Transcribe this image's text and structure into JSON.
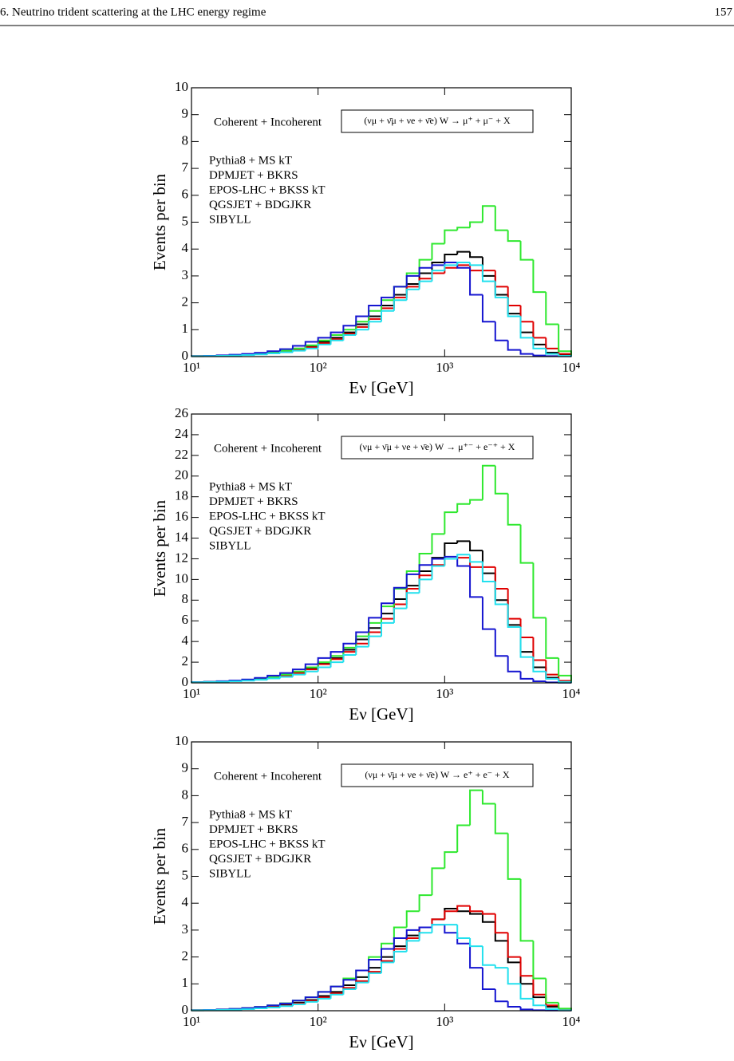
{
  "header": {
    "title": "6. Neutrino trident scattering at the LHC energy regime",
    "page": 157
  },
  "chart_data": [
    {
      "type": "histogram",
      "xlabel": "Eν [GeV]",
      "ylabel": "Events per bin",
      "annotations": [
        "Coherent + Incoherent",
        "(νμ + ν̄μ + νe + ν̄e) W → μ⁺ + μ⁻ + X"
      ],
      "log": true,
      "legend": "upper left",
      "xlim": [
        10,
        10000
      ],
      "xticks": [
        {
          "value": 10,
          "label": "10¹"
        },
        {
          "value": 100,
          "label": "10²"
        },
        {
          "value": 1000,
          "label": "10³"
        },
        {
          "value": 10000,
          "label": "10⁴"
        }
      ],
      "ylim": [
        0,
        10
      ],
      "yticks": [
        0,
        1,
        2,
        3,
        4,
        5,
        6,
        7,
        8,
        9,
        10
      ],
      "bins": [
        10,
        12.59,
        15.85,
        19.95,
        25.12,
        31.62,
        39.81,
        50.12,
        63.1,
        79.43,
        100,
        125.9,
        158.5,
        199.5,
        251.2,
        316.2,
        398.1,
        501.2,
        631,
        794.3,
        1000,
        1259,
        1585,
        1995,
        2512,
        3162,
        3981,
        5012,
        6310,
        7943,
        10000
      ],
      "series": [
        {
          "name": "Pythia8 + MS kT",
          "color": "#000000",
          "values": [
            0.02,
            0.03,
            0.04,
            0.05,
            0.07,
            0.1,
            0.15,
            0.2,
            0.3,
            0.4,
            0.55,
            0.7,
            0.9,
            1.2,
            1.5,
            1.9,
            2.3,
            2.7,
            3.1,
            3.5,
            3.8,
            3.9,
            3.7,
            3.0,
            2.3,
            1.6,
            0.9,
            0.45,
            0.15,
            0.05
          ]
        },
        {
          "name": "DPMJET + BKRS",
          "color": "#e00000",
          "values": [
            0.02,
            0.03,
            0.04,
            0.05,
            0.07,
            0.09,
            0.13,
            0.18,
            0.25,
            0.35,
            0.5,
            0.65,
            0.85,
            1.1,
            1.4,
            1.8,
            2.2,
            2.6,
            2.9,
            3.1,
            3.3,
            3.4,
            3.2,
            3.2,
            2.6,
            1.9,
            1.3,
            0.7,
            0.3,
            0.1
          ]
        },
        {
          "name": "EPOS-LHC + BKSS kT",
          "color": "#2ee82e",
          "values": [
            0.02,
            0.03,
            0.04,
            0.05,
            0.07,
            0.1,
            0.15,
            0.22,
            0.3,
            0.42,
            0.6,
            0.8,
            1.0,
            1.3,
            1.7,
            2.1,
            2.6,
            3.1,
            3.6,
            4.2,
            4.7,
            4.8,
            5.0,
            5.6,
            4.7,
            4.3,
            3.6,
            2.4,
            1.2,
            0.2
          ]
        },
        {
          "name": "QGSJET + BDGJKR",
          "color": "#1515d0",
          "values": [
            0.02,
            0.03,
            0.05,
            0.07,
            0.1,
            0.14,
            0.2,
            0.28,
            0.4,
            0.55,
            0.7,
            0.9,
            1.15,
            1.5,
            1.9,
            2.2,
            2.6,
            3.0,
            3.3,
            3.4,
            3.5,
            3.3,
            2.3,
            1.3,
            0.6,
            0.25,
            0.1,
            0.04,
            0.02,
            0.01
          ]
        },
        {
          "name": "SIBYLL",
          "color": "#22e0ee",
          "values": [
            0.01,
            0.02,
            0.03,
            0.04,
            0.06,
            0.08,
            0.12,
            0.16,
            0.22,
            0.3,
            0.45,
            0.6,
            0.8,
            1.0,
            1.3,
            1.7,
            2.1,
            2.5,
            2.8,
            3.2,
            3.4,
            3.5,
            3.4,
            2.8,
            2.2,
            1.5,
            0.7,
            0.3,
            0.1,
            0.03
          ]
        }
      ]
    },
    {
      "type": "histogram",
      "xlabel": "Eν [GeV]",
      "ylabel": "Events per bin",
      "annotations": [
        "Coherent + Incoherent",
        "(νμ + ν̄μ + νe + ν̄e) W → μ⁺⁻ + e⁻⁺ + X"
      ],
      "log": true,
      "legend": "upper left",
      "xlim": [
        10,
        10000
      ],
      "xticks": [
        {
          "value": 10,
          "label": "10¹"
        },
        {
          "value": 100,
          "label": "10²"
        },
        {
          "value": 1000,
          "label": "10³"
        },
        {
          "value": 10000,
          "label": "10⁴"
        }
      ],
      "ylim": [
        0,
        26
      ],
      "yticks": [
        0,
        2,
        4,
        6,
        8,
        10,
        12,
        14,
        16,
        18,
        20,
        22,
        24,
        26
      ],
      "bins": [
        10,
        12.59,
        15.85,
        19.95,
        25.12,
        31.62,
        39.81,
        50.12,
        63.1,
        79.43,
        100,
        125.9,
        158.5,
        199.5,
        251.2,
        316.2,
        398.1,
        501.2,
        631,
        794.3,
        1000,
        1259,
        1585,
        1995,
        2512,
        3162,
        3981,
        5012,
        6310,
        7943,
        10000
      ],
      "series": [
        {
          "name": "Pythia8 + MS kT",
          "color": "#000000",
          "values": [
            0.07,
            0.1,
            0.14,
            0.2,
            0.28,
            0.4,
            0.55,
            0.75,
            1.0,
            1.4,
            1.9,
            2.4,
            3.2,
            4.2,
            5.3,
            6.7,
            8.1,
            9.4,
            10.8,
            12.1,
            13.5,
            13.7,
            12.8,
            10.6,
            8.0,
            5.6,
            3.0,
            1.5,
            0.5,
            0.15
          ]
        },
        {
          "name": "DPMJET + BKRS",
          "color": "#e00000",
          "values": [
            0.06,
            0.09,
            0.13,
            0.18,
            0.25,
            0.35,
            0.5,
            0.7,
            0.95,
            1.3,
            1.8,
            2.3,
            3.0,
            3.8,
            4.9,
            6.2,
            7.6,
            9.1,
            10.4,
            11.4,
            12.0,
            12.1,
            11.2,
            11.2,
            9.1,
            6.2,
            4.4,
            2.2,
            0.8,
            0.2
          ]
        },
        {
          "name": "EPOS-LHC + BKSS kT",
          "color": "#2ee82e",
          "values": [
            0.07,
            0.1,
            0.14,
            0.2,
            0.28,
            0.4,
            0.55,
            0.8,
            1.1,
            1.5,
            2.0,
            2.6,
            3.4,
            4.5,
            5.8,
            7.4,
            9.1,
            10.8,
            12.5,
            14.4,
            16.5,
            17.3,
            17.7,
            21.0,
            18.3,
            15.3,
            11.6,
            6.3,
            2.4,
            0.7
          ]
        },
        {
          "name": "QGSJET + BDGJKR",
          "color": "#1515d0",
          "values": [
            0.07,
            0.11,
            0.16,
            0.23,
            0.33,
            0.48,
            0.7,
            0.95,
            1.3,
            1.8,
            2.4,
            3.0,
            3.8,
            4.9,
            6.3,
            7.7,
            9.2,
            10.5,
            11.4,
            12.0,
            12.2,
            11.3,
            8.3,
            5.2,
            2.6,
            1.1,
            0.4,
            0.15,
            0.05,
            0.02
          ]
        },
        {
          "name": "SIBYLL",
          "color": "#22e0ee",
          "values": [
            0.05,
            0.08,
            0.11,
            0.15,
            0.21,
            0.3,
            0.42,
            0.58,
            0.8,
            1.1,
            1.5,
            2.0,
            2.7,
            3.5,
            4.5,
            5.8,
            7.2,
            8.7,
            10.0,
            11.3,
            12.0,
            12.4,
            11.7,
            9.8,
            7.6,
            5.4,
            2.5,
            1.1,
            0.4,
            0.1
          ]
        }
      ]
    },
    {
      "type": "histogram",
      "xlabel": "Eν [GeV]",
      "ylabel": "Events per bin",
      "annotations": [
        "Coherent + Incoherent",
        "(νμ + ν̄μ + νe + ν̄e) W → e⁺ + e⁻ + X"
      ],
      "log": true,
      "legend": "upper left",
      "xlim": [
        10,
        10000
      ],
      "xticks": [
        {
          "value": 10,
          "label": "10¹"
        },
        {
          "value": 100,
          "label": "10²"
        },
        {
          "value": 1000,
          "label": "10³"
        },
        {
          "value": 10000,
          "label": "10⁴"
        }
      ],
      "ylim": [
        0,
        10
      ],
      "yticks": [
        0,
        1,
        2,
        3,
        4,
        5,
        6,
        7,
        8,
        9,
        10
      ],
      "bins": [
        10,
        12.59,
        15.85,
        19.95,
        25.12,
        31.62,
        39.81,
        50.12,
        63.1,
        79.43,
        100,
        125.9,
        158.5,
        199.5,
        251.2,
        316.2,
        398.1,
        501.2,
        631,
        794.3,
        1000,
        1259,
        1585,
        1995,
        2512,
        3162,
        3981,
        5012,
        6310,
        7943,
        10000
      ],
      "series": [
        {
          "name": "Pythia8 + MS kT",
          "color": "#000000",
          "values": [
            0.02,
            0.03,
            0.04,
            0.06,
            0.08,
            0.11,
            0.15,
            0.21,
            0.3,
            0.4,
            0.55,
            0.7,
            0.95,
            1.25,
            1.6,
            2.0,
            2.4,
            2.8,
            3.1,
            3.4,
            3.8,
            3.7,
            3.6,
            3.3,
            2.6,
            1.8,
            1.0,
            0.5,
            0.15,
            0.05
          ]
        },
        {
          "name": "DPMJET + BKRS",
          "color": "#e00000",
          "values": [
            0.02,
            0.03,
            0.04,
            0.05,
            0.07,
            0.1,
            0.14,
            0.19,
            0.27,
            0.37,
            0.5,
            0.65,
            0.85,
            1.1,
            1.45,
            1.85,
            2.3,
            2.7,
            3.1,
            3.4,
            3.7,
            3.9,
            3.7,
            3.6,
            2.9,
            2.0,
            1.3,
            0.6,
            0.2,
            0.05
          ]
        },
        {
          "name": "EPOS-LHC + BKSS kT",
          "color": "#2ee82e",
          "values": [
            0.02,
            0.03,
            0.05,
            0.07,
            0.1,
            0.14,
            0.2,
            0.28,
            0.38,
            0.5,
            0.7,
            0.9,
            1.2,
            1.5,
            2.0,
            2.5,
            3.1,
            3.7,
            4.3,
            5.3,
            5.9,
            6.9,
            8.2,
            7.7,
            6.6,
            4.9,
            2.6,
            1.2,
            0.3,
            0.08
          ]
        },
        {
          "name": "QGSJET + BDGJKR",
          "color": "#1515d0",
          "values": [
            0.02,
            0.03,
            0.05,
            0.07,
            0.1,
            0.14,
            0.2,
            0.27,
            0.38,
            0.5,
            0.7,
            0.9,
            1.15,
            1.5,
            1.9,
            2.3,
            2.7,
            3.0,
            3.1,
            3.2,
            2.9,
            2.5,
            1.6,
            0.8,
            0.35,
            0.15,
            0.05,
            0.02,
            0.01,
            0.01
          ]
        },
        {
          "name": "SIBYLL",
          "color": "#22e0ee",
          "values": [
            0.01,
            0.02,
            0.03,
            0.04,
            0.06,
            0.09,
            0.12,
            0.17,
            0.24,
            0.33,
            0.45,
            0.6,
            0.8,
            1.05,
            1.4,
            1.8,
            2.2,
            2.6,
            2.9,
            3.2,
            3.2,
            2.7,
            2.4,
            1.7,
            1.6,
            1.0,
            0.45,
            0.2,
            0.06,
            0.02
          ]
        }
      ]
    }
  ]
}
